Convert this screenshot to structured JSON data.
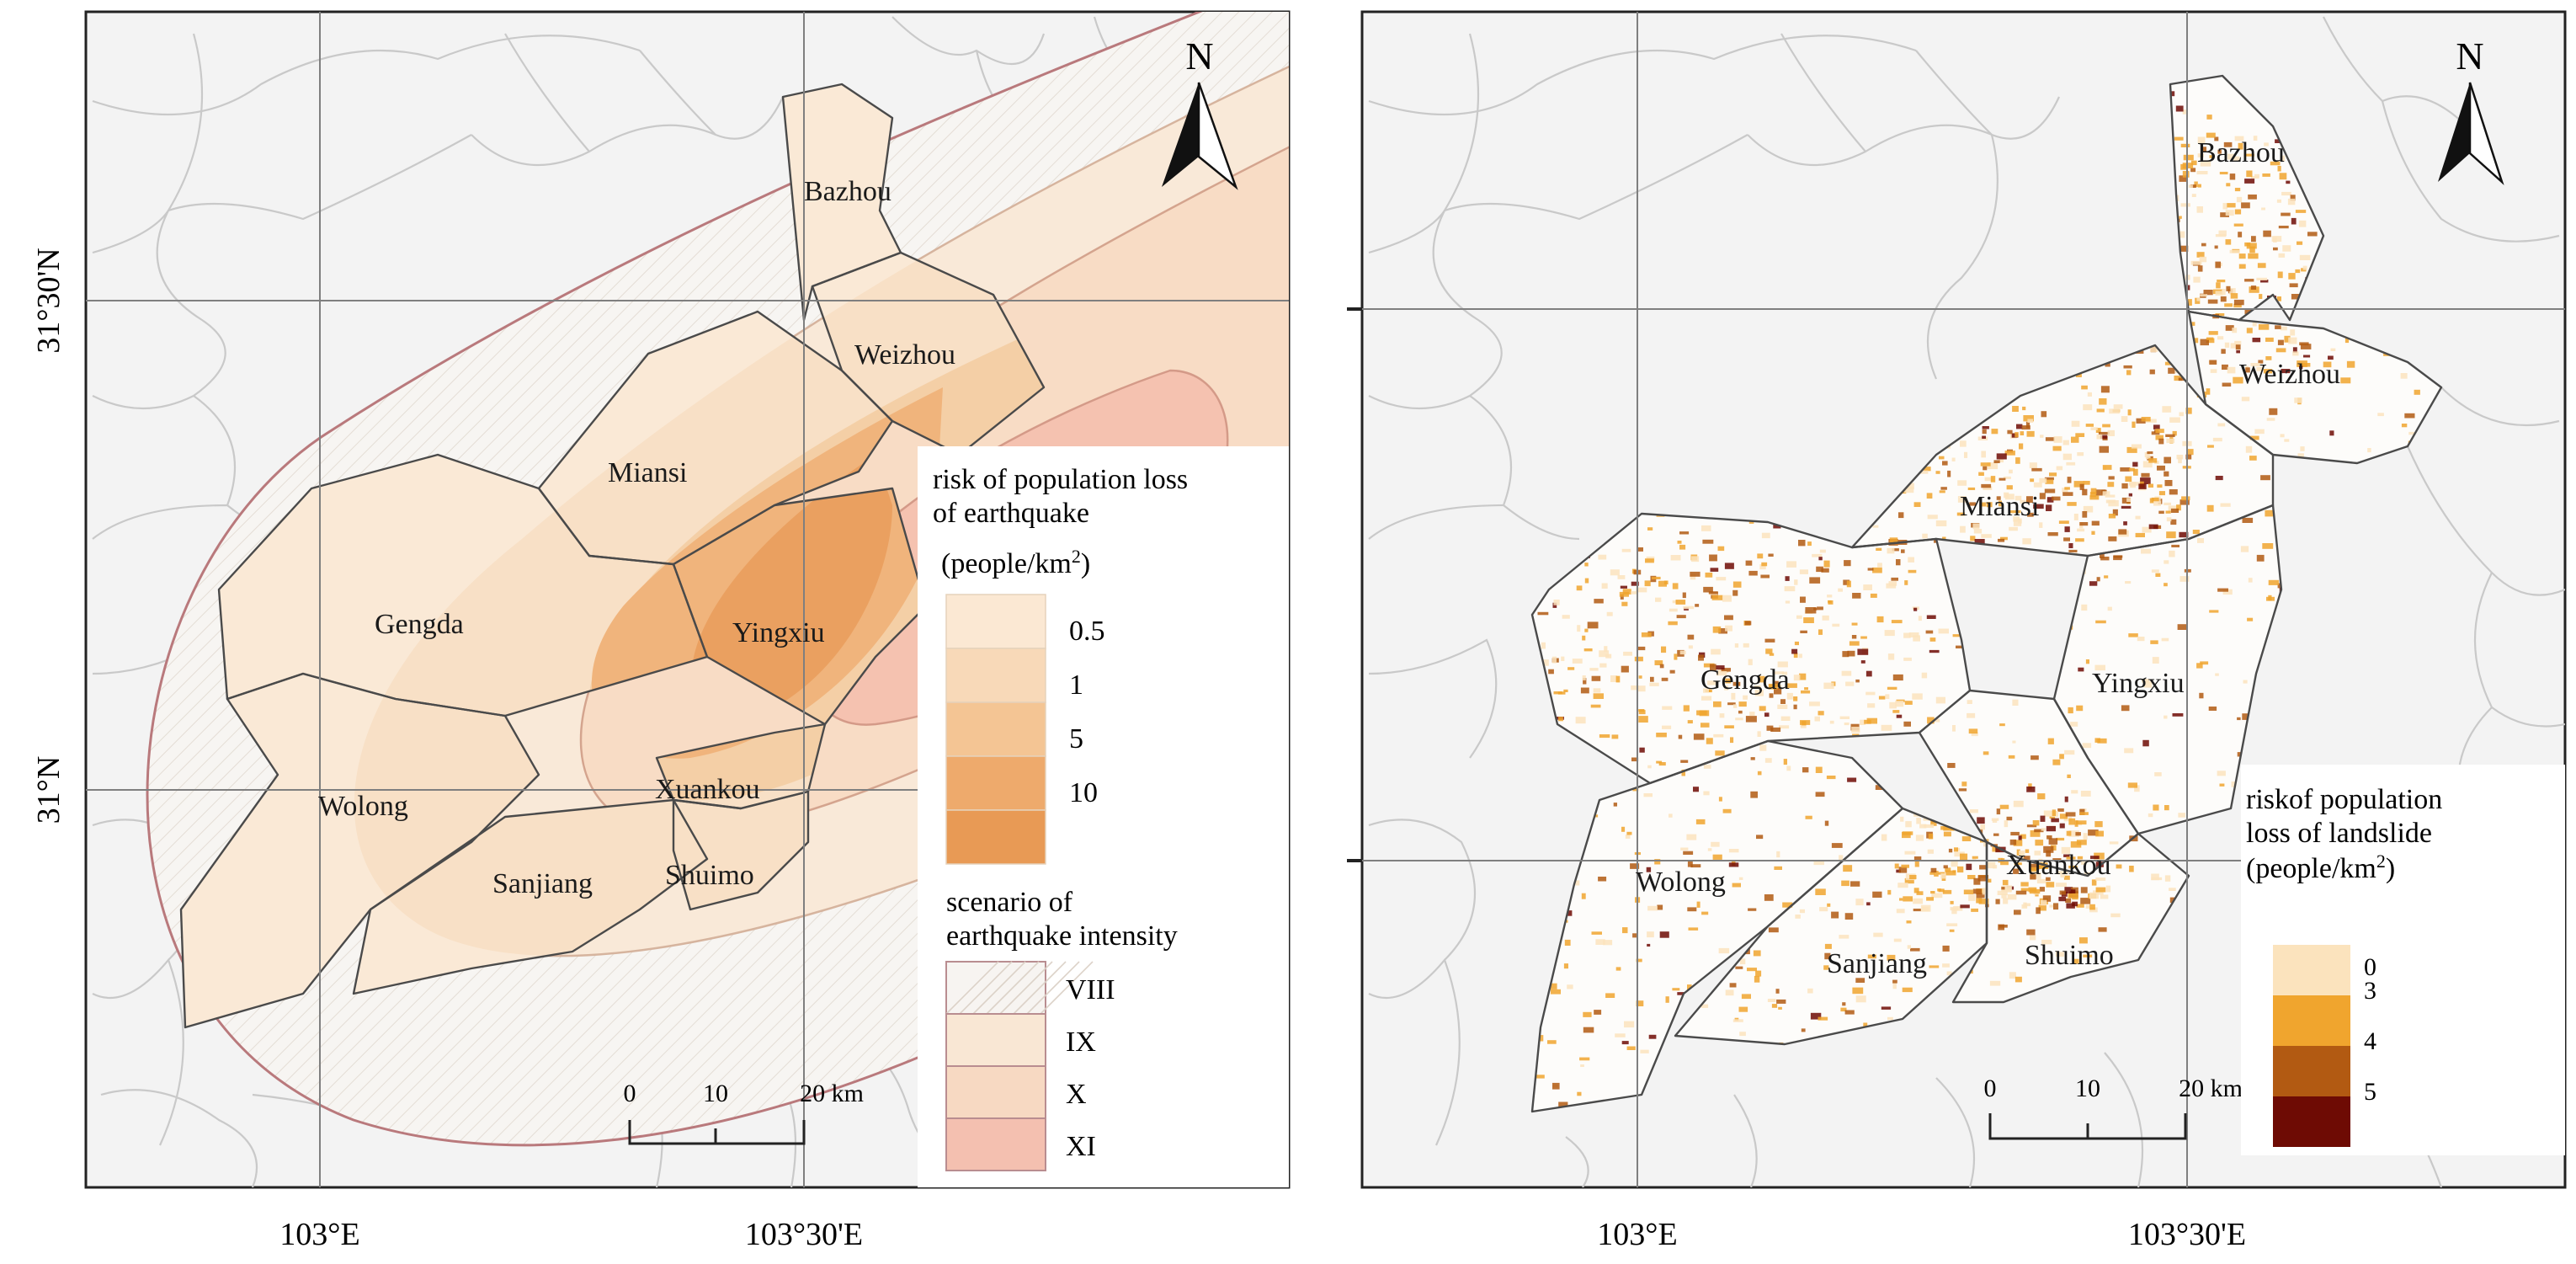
{
  "left_map": {
    "north_label": "N",
    "lat_labels": [
      "31°30'N",
      "31°N"
    ],
    "lon_labels": [
      "103°E",
      "103°30'E"
    ],
    "towns": [
      "Bazhou",
      "Weizhou",
      "Miansi",
      "Gengda",
      "Yingxiu",
      "Xuankou",
      "Wolong",
      "Sanjiang",
      "Shuimo"
    ],
    "scale_labels": [
      "0",
      "10",
      "20 km"
    ],
    "risk_legend": {
      "title_lines": [
        "risk of population loss",
        "of earthquake"
      ],
      "unit": "(people/km",
      "unit_sup": "2",
      "unit_close": ")",
      "classes": [
        {
          "label": "0.5",
          "color": "#fbe8d3"
        },
        {
          "label": "1",
          "color": "#f8d9b8"
        },
        {
          "label": "5",
          "color": "#f4c594"
        },
        {
          "label": "10",
          "color": "#eeaa6c"
        },
        {
          "label": "",
          "color": "#e89a55"
        }
      ]
    },
    "intensity_legend": {
      "title_lines": [
        "scenario of",
        "earthquake intensity"
      ],
      "classes": [
        {
          "label": "VIII",
          "color": "#f7f4f1"
        },
        {
          "label": "IX",
          "color": "#f9e7d4"
        },
        {
          "label": "X",
          "color": "#f7d9c2"
        },
        {
          "label": "XI",
          "color": "#f4c0b0"
        }
      ]
    }
  },
  "right_map": {
    "north_label": "N",
    "lon_labels": [
      "103°E",
      "103°30'E"
    ],
    "towns": [
      "Bazhou",
      "Weizhou",
      "Miansi",
      "Gengda",
      "Yingxiu",
      "Xuankou",
      "Wolong",
      "Sanjiang",
      "Shuimo"
    ],
    "scale_labels": [
      "0",
      "10",
      "20 km"
    ],
    "risk_legend": {
      "title_lines": [
        "riskof population",
        "loss of landslide"
      ],
      "unit": "(people/km",
      "unit_sup": "2",
      "unit_close": ")",
      "classes": [
        {
          "label": "0",
          "color": "#fbe3bd"
        },
        {
          "label": "3",
          "color": "#f0a52e"
        },
        {
          "label": "4",
          "color": "#b25a12"
        },
        {
          "label": "5",
          "color": "#6e0b04"
        }
      ]
    }
  }
}
